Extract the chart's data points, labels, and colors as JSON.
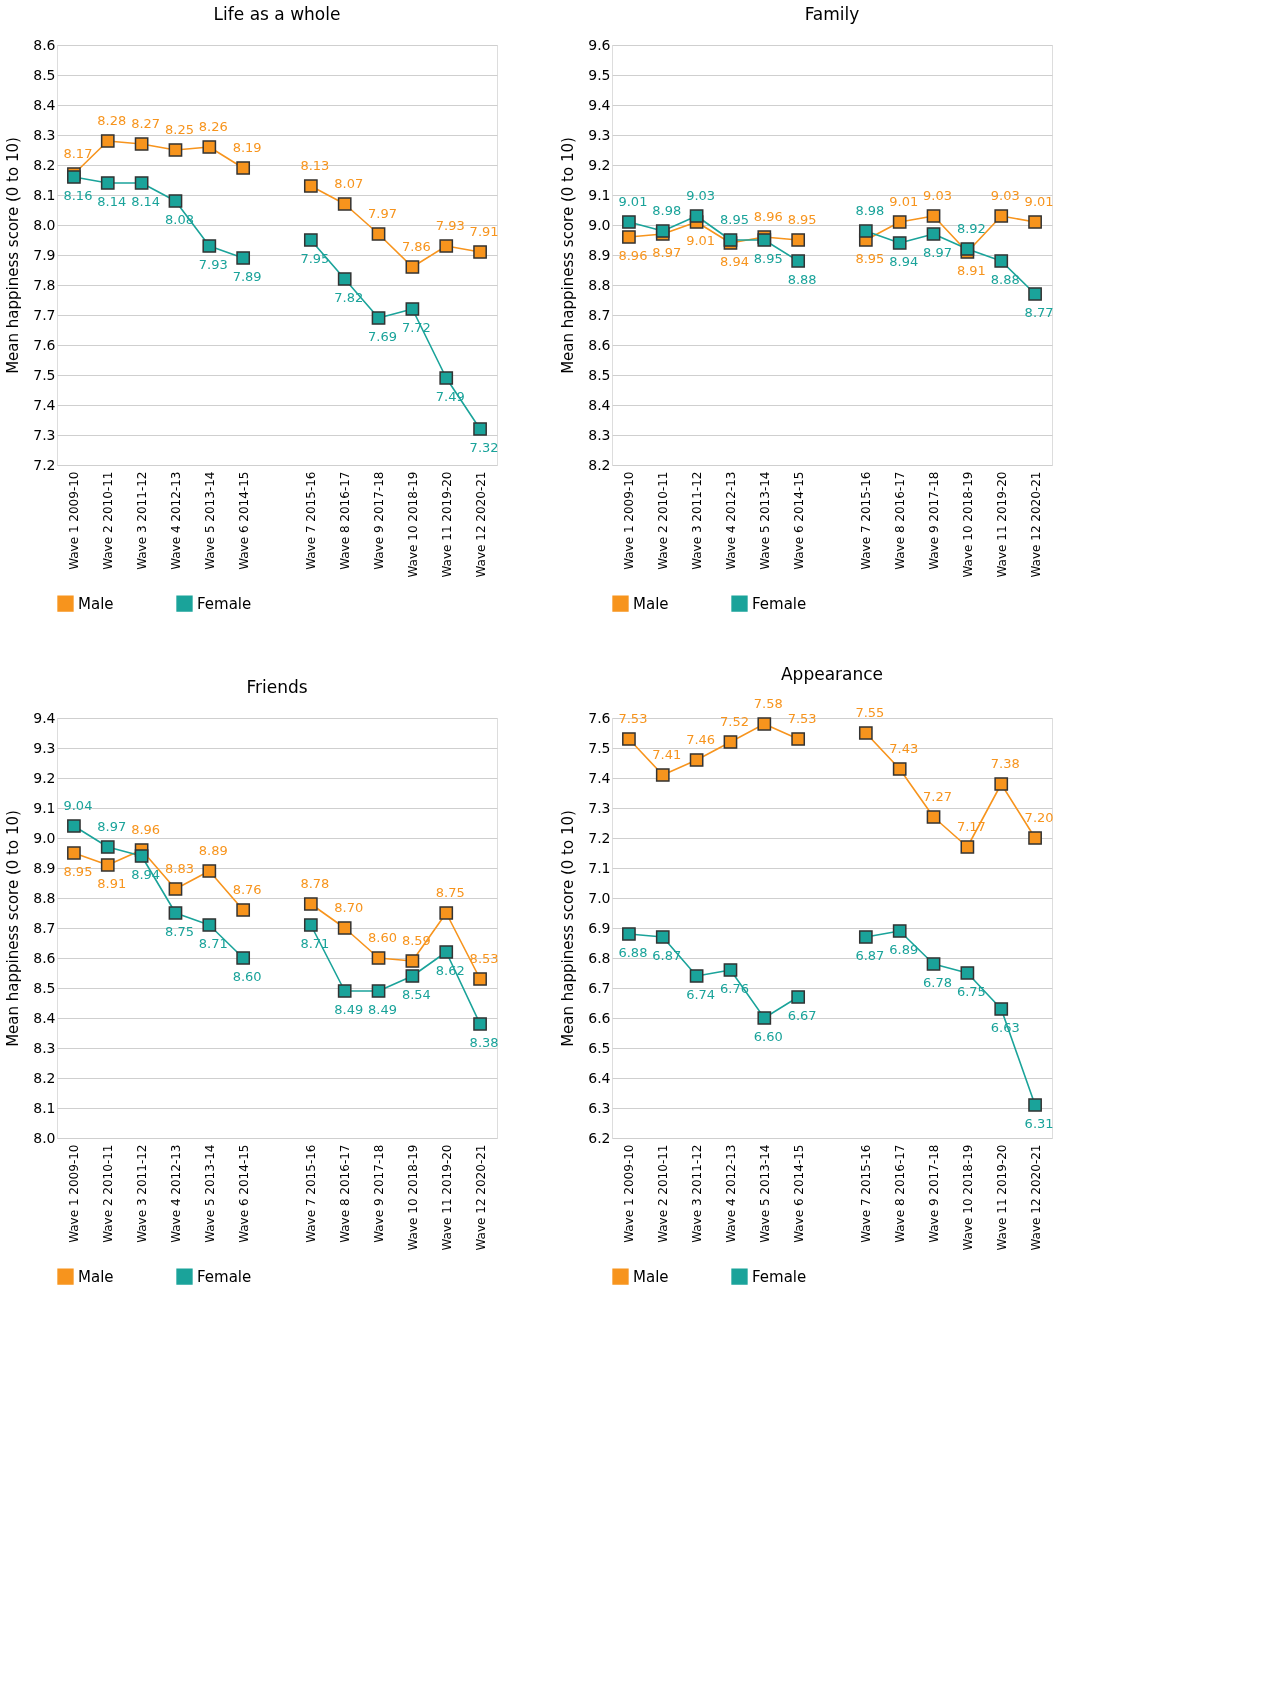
{
  "chart_data": [
    {
      "type": "line",
      "title": "Life as a whole",
      "ylabel": "Mean happiness score (0 to 10)",
      "categories": [
        "Wave 1 2009-10",
        "Wave 2 2010-11",
        "Wave 3 2011-12",
        "Wave 4 2012-13",
        "Wave 5 2013-14",
        "Wave 6 2014-15",
        null,
        "Wave 7 2015-16",
        "Wave 8 2016-17",
        "Wave 9 2017-18",
        "Wave 10 2018-19",
        "Wave 11 2019-20",
        "Wave 12 2020-21"
      ],
      "series": [
        {
          "name": "Male",
          "color": "#f7941d",
          "values": [
            8.17,
            8.28,
            8.27,
            8.25,
            8.26,
            8.19,
            null,
            8.13,
            8.07,
            7.97,
            7.86,
            7.93,
            7.91
          ],
          "value_labels": [
            "8.17",
            "8.28",
            "8.27",
            "8.25",
            "8.26",
            "8.19",
            null,
            "8.13",
            "8.07",
            "7.97",
            "7.86",
            "7.93",
            "7.91"
          ]
        },
        {
          "name": "Female",
          "color": "#1aa39a",
          "values": [
            8.16,
            8.14,
            8.14,
            8.08,
            7.93,
            7.89,
            null,
            7.95,
            7.82,
            7.69,
            7.72,
            7.49,
            7.32
          ],
          "value_labels": [
            "8.16",
            "8.14",
            "8.14",
            "8.08",
            "7.93",
            "7.89",
            null,
            "7.95",
            "7.82",
            "7.69",
            "7.72",
            "7.49",
            "7.32"
          ]
        }
      ],
      "ylim": [
        7.2,
        8.6
      ],
      "yticks": [
        7.2,
        7.3,
        7.4,
        7.5,
        7.6,
        7.7,
        7.8,
        7.9,
        {
          "value": 8,
          "label": "8.0"
        },
        8.1,
        8.2,
        8.3,
        8.4,
        8.5,
        8.6
      ],
      "grid": "y",
      "legend": "bottom",
      "marker": "square",
      "line_style": "solid"
    },
    {
      "type": "line",
      "title": "Family",
      "ylabel": "Mean happiness score (0 to 10)",
      "categories": [
        "Wave 1 2009-10",
        "Wave 2 2010-11",
        "Wave 3 2011-12",
        "Wave 4 2012-13",
        "Wave 5 2013-14",
        "Wave 6 2014-15",
        null,
        "Wave 7 2015-16",
        "Wave 8 2016-17",
        "Wave 9 2017-18",
        "Wave 10 2018-19",
        "Wave 11 2019-20",
        "Wave 12 2020-21"
      ],
      "series": [
        {
          "name": "Male",
          "color": "#f7941d",
          "values": [
            8.96,
            8.97,
            9.01,
            8.94,
            8.96,
            8.95,
            null,
            8.95,
            9.01,
            9.03,
            8.91,
            9.03,
            9.01
          ],
          "value_labels": [
            "8.96",
            "8.97",
            "9.01",
            "8.94",
            "8.96",
            "8.95",
            null,
            "8.95",
            "9.01",
            "9.03",
            "8.91",
            "9.03",
            "9.01"
          ]
        },
        {
          "name": "Female",
          "color": "#1aa39a",
          "values": [
            9.01,
            8.98,
            9.03,
            8.95,
            8.95,
            8.88,
            null,
            8.98,
            8.94,
            8.97,
            8.92,
            8.88,
            8.77
          ],
          "value_labels": [
            "9.01",
            "8.98",
            "9.03",
            "8.95",
            "8.95",
            "8.88",
            null,
            "8.98",
            "8.94",
            "8.97",
            "8.92",
            "8.88",
            "8.77"
          ]
        }
      ],
      "ylim": [
        8.2,
        9.6
      ],
      "yticks": [
        8.2,
        8.3,
        8.4,
        8.5,
        8.6,
        8.7,
        8.8,
        8.9,
        {
          "value": 9,
          "label": "9.0"
        },
        9.1,
        9.2,
        9.3,
        9.4,
        9.5,
        9.6
      ],
      "grid": "y",
      "legend": "bottom",
      "marker": "square",
      "line_style": "solid"
    },
    {
      "type": "line",
      "title": "Friends",
      "ylabel": "Mean happiness score (0 to 10)",
      "categories": [
        "Wave 1 2009-10",
        "Wave 2 2010-11",
        "Wave 3 2011-12",
        "Wave 4 2012-13",
        "Wave 5 2013-14",
        "Wave 6 2014-15",
        null,
        "Wave 7 2015-16",
        "Wave 8 2016-17",
        "Wave 9 2017-18",
        "Wave 10 2018-19",
        "Wave 11 2019-20",
        "Wave 12 2020-21"
      ],
      "series": [
        {
          "name": "Male",
          "color": "#f7941d",
          "values": [
            8.95,
            8.91,
            8.96,
            8.83,
            8.89,
            8.76,
            null,
            8.78,
            8.7,
            8.6,
            8.59,
            8.75,
            8.53
          ],
          "value_labels": [
            "8.95",
            "8.91",
            "8.96",
            "8.83",
            "8.89",
            "8.76",
            null,
            "8.78",
            "8.70",
            "8.60",
            "8.59",
            "8.75",
            "8.53"
          ]
        },
        {
          "name": "Female",
          "color": "#1aa39a",
          "values": [
            9.04,
            8.97,
            8.94,
            8.75,
            8.71,
            8.6,
            null,
            8.71,
            8.49,
            8.49,
            8.54,
            8.62,
            8.38
          ],
          "value_labels": [
            "9.04",
            "8.97",
            "8.94",
            "8.75",
            "8.71",
            "8.60",
            null,
            "8.71",
            "8.49",
            "8.49",
            "8.54",
            "8.62",
            "8.38"
          ]
        }
      ],
      "ylim": [
        8.0,
        9.4
      ],
      "yticks": [
        {
          "value": 8,
          "label": "8.0"
        },
        8.1,
        8.2,
        8.3,
        8.4,
        8.5,
        8.6,
        8.7,
        8.8,
        8.9,
        {
          "value": 9,
          "label": "9.0"
        },
        9.1,
        9.2,
        9.3,
        9.4
      ],
      "grid": "y",
      "legend": "bottom",
      "marker": "square",
      "line_style": "solid"
    },
    {
      "type": "line",
      "title": "Appearance",
      "ylabel": "Mean happiness score (0 to 10)",
      "categories": [
        "Wave 1 2009-10",
        "Wave 2 2010-11",
        "Wave 3 2011-12",
        "Wave 4 2012-13",
        "Wave 5 2013-14",
        "Wave 6 2014-15",
        null,
        "Wave 7 2015-16",
        "Wave 8 2016-17",
        "Wave 9 2017-18",
        "Wave 10 2018-19",
        "Wave 11 2019-20",
        "Wave 12 2020-21"
      ],
      "series": [
        {
          "name": "Male",
          "color": "#f7941d",
          "values": [
            7.53,
            7.41,
            7.46,
            7.52,
            7.58,
            7.53,
            null,
            7.55,
            7.43,
            7.27,
            7.17,
            7.38,
            7.2
          ],
          "value_labels": [
            "7.53",
            "7.41",
            "7.46",
            "7.52",
            "7.58",
            "7.53",
            null,
            "7.55",
            "7.43",
            "7.27",
            "7.17",
            "7.38",
            "7.20"
          ]
        },
        {
          "name": "Female",
          "color": "#1aa39a",
          "values": [
            6.88,
            6.87,
            6.74,
            6.76,
            6.6,
            6.67,
            null,
            6.87,
            6.89,
            6.78,
            6.75,
            6.63,
            6.31
          ],
          "value_labels": [
            "6.88",
            "6.87",
            "6.74",
            "6.76",
            "6.60",
            "6.67",
            null,
            "6.87",
            "6.89",
            "6.78",
            "6.75",
            "6.63",
            "6.31"
          ]
        }
      ],
      "ylim": [
        6.2,
        7.6
      ],
      "yticks": [
        6.2,
        6.3,
        6.4,
        6.5,
        6.6,
        6.7,
        6.8,
        6.9,
        {
          "value": 7,
          "label": "7.0"
        },
        7.1,
        7.2,
        7.3,
        7.4,
        7.5,
        7.6
      ],
      "grid": "y",
      "legend": "bottom",
      "marker": "square",
      "line_style": "solid"
    }
  ]
}
